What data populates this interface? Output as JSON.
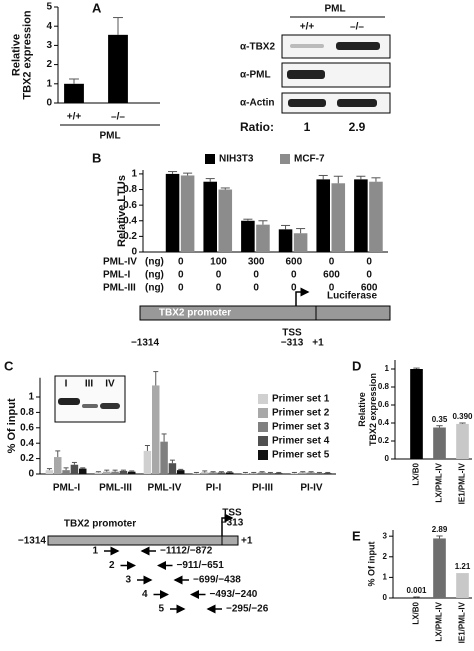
{
  "panel_labels": [
    "A",
    "B",
    "C",
    "D",
    "E"
  ],
  "chart_data": [
    {
      "type": "bar",
      "ylabel": [
        "Relative",
        "TBX2 expression"
      ],
      "categories": [
        "+/+",
        "–/–"
      ],
      "values": [
        1,
        3.55
      ],
      "errors": [
        0.25,
        0.9
      ],
      "color": "#000000",
      "ylim": [
        0,
        5
      ],
      "yticks": [
        0,
        1,
        2,
        3,
        4,
        5
      ],
      "xlabel": "PML"
    },
    {
      "type": "bar",
      "ylabel": "Relative LTUs",
      "categories": [
        null,
        null,
        null,
        null,
        null,
        null
      ],
      "series": [
        {
          "name": "NIH3T3",
          "color": "#000000",
          "values": [
            1,
            0.9,
            0.4,
            0.29,
            0.93,
            0.93
          ],
          "errors": [
            0.03,
            0.04,
            0.02,
            0.05,
            0.05,
            0.04
          ]
        },
        {
          "name": "MCF-7",
          "color": "#8c8c8c",
          "values": [
            0.98,
            0.8,
            0.35,
            0.24,
            0.88,
            0.9
          ],
          "errors": [
            0.03,
            0.02,
            0.05,
            0.06,
            0.09,
            0.05
          ]
        }
      ],
      "ylim": [
        0,
        1.05
      ],
      "yticks": [
        0,
        0.2,
        0.4,
        0.6,
        0.8,
        1
      ],
      "conditions": {
        "unit": "(ng)",
        "rows": [
          {
            "name": "PML-IV",
            "values": [
              0,
              100,
              300,
              600,
              0,
              0
            ]
          },
          {
            "name": "PML-I",
            "values": [
              0,
              0,
              0,
              0,
              600,
              0
            ]
          },
          {
            "name": "PML-III",
            "values": [
              0,
              0,
              0,
              0,
              0,
              600
            ]
          }
        ]
      }
    },
    {
      "type": "bar",
      "ylabel": "% Of input",
      "categories": [
        "PML-I",
        "PML-III",
        "PML-IV",
        "PI-I",
        "PI-III",
        "PI-IV"
      ],
      "series": [
        {
          "name": "Primer set 1",
          "color": "#d0d0d0",
          "values": [
            0.05,
            0.02,
            0.3,
            0.01,
            0.01,
            0.01
          ],
          "errors": [
            0.02,
            0.01,
            0.07,
            0.01,
            0.01,
            0.01
          ]
        },
        {
          "name": "Primer set 2",
          "color": "#a8a8a8",
          "values": [
            0.22,
            0.03,
            1.15,
            0.02,
            0.01,
            0.02
          ],
          "errors": [
            0.08,
            0.02,
            0.18,
            0.02,
            0.01,
            0.01
          ]
        },
        {
          "name": "Primer set 3",
          "color": "#808080",
          "values": [
            0.05,
            0.03,
            0.42,
            0.02,
            0.02,
            0.02
          ],
          "errors": [
            0.03,
            0.02,
            0.1,
            0.01,
            0.01,
            0.01
          ]
        },
        {
          "name": "Primer set 4",
          "color": "#505050",
          "values": [
            0.12,
            0.04,
            0.14,
            0.02,
            0.01,
            0.01
          ],
          "errors": [
            0.03,
            0.01,
            0.04,
            0.01,
            0.01,
            0.01
          ]
        },
        {
          "name": "Primer set 5",
          "color": "#111111",
          "values": [
            0.07,
            0.03,
            0.05,
            0.02,
            0.01,
            0.01
          ],
          "errors": [
            0.01,
            0.01,
            0.01,
            0.01,
            0.01,
            0.01
          ]
        }
      ],
      "ylim": [
        0,
        1.25
      ],
      "yticks": [
        0,
        0.2,
        0.4,
        0.6,
        0.8,
        1
      ]
    },
    {
      "type": "bar",
      "ylabel": [
        "Relative",
        "TBX2 expression"
      ],
      "categories": [
        "LX/B0",
        "LX/PML-IV",
        "IE1/PML-IV"
      ],
      "values": [
        1,
        0.35,
        0.39
      ],
      "errors": [
        0.01,
        0.02,
        0.01
      ],
      "value_labels": [
        null,
        "0.35",
        "0.390"
      ],
      "colors": [
        "#000000",
        "#6e6e6e",
        "#c8c8c8"
      ],
      "ylim": [
        0,
        1.1
      ],
      "yticks": [
        0,
        0.2,
        0.4,
        0.6,
        0.8,
        1
      ]
    },
    {
      "type": "bar",
      "ylabel": "% Of input",
      "categories": [
        "LX/B0",
        "LX/PML-IV",
        "IE1/PML-IV"
      ],
      "values": [
        0.001,
        2.89,
        1.21
      ],
      "errors": [
        0.05,
        0.12,
        0
      ],
      "data_labels": true,
      "colors": [
        "#000000",
        "#6e6e6e",
        "#c8c8c8"
      ],
      "ylim": [
        0,
        3.3
      ],
      "yticks": [
        0,
        1,
        2,
        3
      ]
    }
  ],
  "blot": {
    "header": "PML",
    "lanes": [
      "+/+",
      "–/–"
    ],
    "rows": [
      "α-TBX2",
      "α-PML",
      "α-Actin"
    ],
    "ratio_label": "Ratio:",
    "ratios": [
      1,
      2.9
    ]
  },
  "inset_blot": {
    "lanes": [
      "I",
      "III",
      "IV"
    ]
  },
  "promoter_b": {
    "promoter": "TBX2 promoter",
    "reporter": "Luciferase",
    "tss": "TSS",
    "tss_pos": "−313",
    "start": "−1314",
    "end": "+1"
  },
  "promoter_c": {
    "promoter": "TBX2 promoter",
    "tss": "TSS",
    "tss_pos": "−313",
    "start": "−1314",
    "end": "+1",
    "primers": [
      {
        "label": 1,
        "range": "−1112/−872"
      },
      {
        "label": 2,
        "range": "−911/−651"
      },
      {
        "label": 3,
        "range": "−699/−438"
      },
      {
        "label": 4,
        "range": "−493/−240"
      },
      {
        "label": 5,
        "range": "−295/−26"
      }
    ]
  }
}
